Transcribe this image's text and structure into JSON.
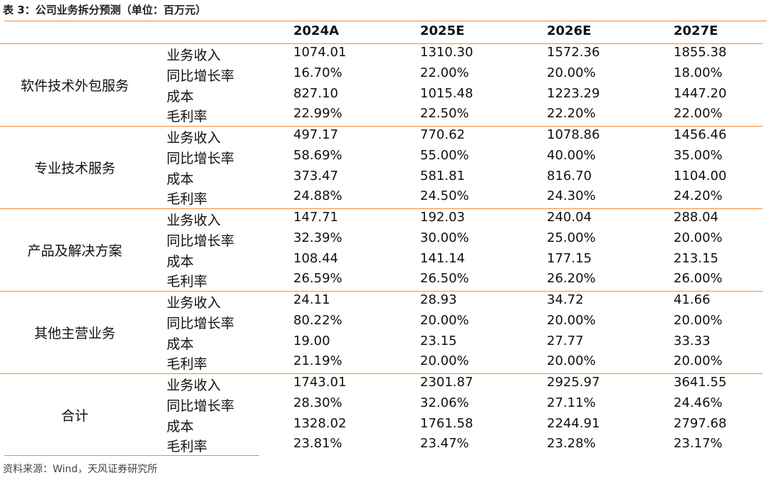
{
  "caption": "表 3：公司业务拆分预测（单位：百万元）",
  "columns": [
    "2024A",
    "2025E",
    "2026E",
    "2027E"
  ],
  "segments": [
    {
      "name": "软件技术外包服务",
      "rows": [
        {
          "metric": "业务收入",
          "values": [
            "1074.01",
            "1310.30",
            "1572.36",
            "1855.38"
          ]
        },
        {
          "metric": "同比增长率",
          "values": [
            "16.70%",
            "22.00%",
            "20.00%",
            "18.00%"
          ]
        },
        {
          "metric": "成本",
          "values": [
            "827.10",
            "1015.48",
            "1223.29",
            "1447.20"
          ]
        },
        {
          "metric": "毛利率",
          "values": [
            "22.99%",
            "22.50%",
            "22.20%",
            "22.00%"
          ]
        }
      ]
    },
    {
      "name": "专业技术服务",
      "rows": [
        {
          "metric": "业务收入",
          "values": [
            "497.17",
            "770.62",
            "1078.86",
            "1456.46"
          ]
        },
        {
          "metric": "同比增长率",
          "values": [
            "58.69%",
            "55.00%",
            "40.00%",
            "35.00%"
          ]
        },
        {
          "metric": "成本",
          "values": [
            "373.47",
            "581.81",
            "816.70",
            "1104.00"
          ]
        },
        {
          "metric": "毛利率",
          "values": [
            "24.88%",
            "24.50%",
            "24.30%",
            "24.20%"
          ]
        }
      ]
    },
    {
      "name": "产品及解决方案",
      "rows": [
        {
          "metric": "业务收入",
          "values": [
            "147.71",
            "192.03",
            "240.04",
            "288.04"
          ]
        },
        {
          "metric": "同比增长率",
          "values": [
            "32.39%",
            "30.00%",
            "25.00%",
            "20.00%"
          ]
        },
        {
          "metric": "成本",
          "values": [
            "108.44",
            "141.14",
            "177.15",
            "213.15"
          ]
        },
        {
          "metric": "毛利率",
          "values": [
            "26.59%",
            "26.50%",
            "26.20%",
            "26.00%"
          ]
        }
      ]
    },
    {
      "name": "其他主营业务",
      "rows": [
        {
          "metric": "业务收入",
          "values": [
            "24.11",
            "28.93",
            "34.72",
            "41.66"
          ]
        },
        {
          "metric": "同比增长率",
          "values": [
            "80.22%",
            "20.00%",
            "20.00%",
            "20.00%"
          ]
        },
        {
          "metric": "成本",
          "values": [
            "19.00",
            "23.15",
            "27.77",
            "33.33"
          ]
        },
        {
          "metric": "毛利率",
          "values": [
            "21.19%",
            "20.00%",
            "20.00%",
            "20.00%"
          ]
        }
      ]
    },
    {
      "name": "合计",
      "rows": [
        {
          "metric": "业务收入",
          "values": [
            "1743.01",
            "2301.87",
            "2925.97",
            "3641.55"
          ]
        },
        {
          "metric": "同比增长率",
          "values": [
            "28.30%",
            "32.06%",
            "27.11%",
            "24.46%"
          ]
        },
        {
          "metric": "成本",
          "values": [
            "1328.02",
            "1761.58",
            "2244.91",
            "2797.68"
          ]
        },
        {
          "metric": "毛利率",
          "values": [
            "23.81%",
            "23.47%",
            "23.28%",
            "23.17%"
          ]
        }
      ]
    }
  ],
  "source": "资料来源：Wind，天风证券研究所",
  "colors": {
    "rule": "#f08c3c"
  }
}
